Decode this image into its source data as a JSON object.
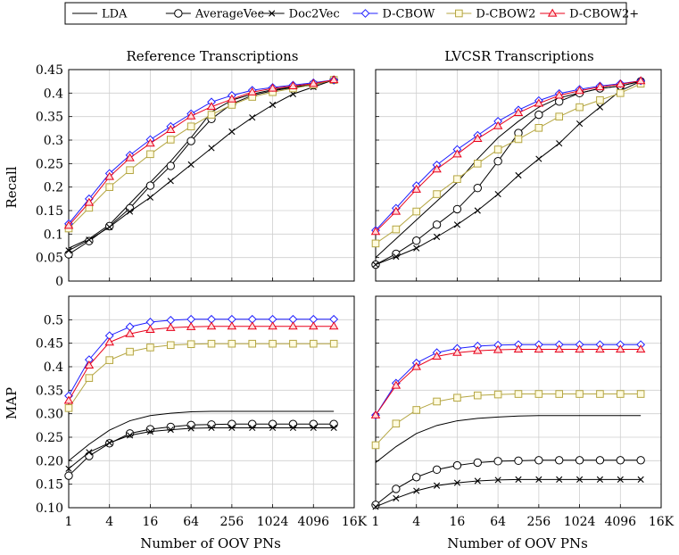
{
  "legend": [
    {
      "key": "lda",
      "label": "LDA",
      "color": "#000000",
      "marker": "none"
    },
    {
      "key": "averagevec",
      "label": "AverageVec",
      "color": "#000000",
      "marker": "circle"
    },
    {
      "key": "doc2vec",
      "label": "Doc2Vec",
      "color": "#000000",
      "marker": "x"
    },
    {
      "key": "dcbow",
      "label": "D-CBOW",
      "color": "#1f1fff",
      "marker": "diamond"
    },
    {
      "key": "dcbow2",
      "label": "D-CBOW2",
      "color": "#b5a642",
      "marker": "square"
    },
    {
      "key": "dcbow2plus",
      "label": "D-CBOW2+",
      "color": "#e8001a",
      "marker": "triangle"
    }
  ],
  "x_tick_labels": [
    "1",
    "4",
    "16",
    "64",
    "256",
    "1024",
    "4096",
    "16K"
  ],
  "x_tick_values": [
    1,
    4,
    16,
    64,
    256,
    1024,
    4096,
    16384
  ],
  "x_axis_title": "Number of OOV PNs",
  "column_titles": [
    "Reference Transcriptions",
    "LVCSR Transcriptions"
  ],
  "row_titles": [
    "Recall",
    "MAP"
  ],
  "recall_ticks": [
    "0",
    "0.05",
    "0.1",
    "0.15",
    "0.2",
    "0.25",
    "0.3",
    "0.35",
    "0.4",
    "0.45"
  ],
  "map_ticks": [
    "0.10",
    "0.15",
    "0.20",
    "0.25",
    "0.30",
    "0.35",
    "0.4",
    "0.45",
    "0.5"
  ],
  "chart_data": [
    {
      "type": "line",
      "title": "Reference Transcriptions",
      "xlabel": "",
      "ylabel": "Recall",
      "x_scale": "log2",
      "xlim": [
        1,
        16384
      ],
      "ylim": [
        0,
        0.45
      ],
      "grid": true,
      "x": [
        1,
        2,
        4,
        8,
        16,
        32,
        64,
        128,
        256,
        512,
        1024,
        2048,
        4096,
        8192
      ],
      "series": [
        {
          "name": "LDA",
          "values": [
            0.07,
            0.09,
            0.12,
            0.165,
            0.21,
            0.255,
            0.305,
            0.36,
            0.385,
            0.398,
            0.407,
            0.413,
            0.418,
            0.428
          ]
        },
        {
          "name": "AverageVec",
          "values": [
            0.057,
            0.085,
            0.117,
            0.155,
            0.203,
            0.245,
            0.298,
            0.345,
            0.377,
            0.395,
            0.405,
            0.412,
            0.417,
            0.428
          ]
        },
        {
          "name": "Doc2Vec",
          "values": [
            0.065,
            0.088,
            0.115,
            0.148,
            0.178,
            0.213,
            0.248,
            0.283,
            0.318,
            0.348,
            0.375,
            0.398,
            0.413,
            0.428
          ]
        },
        {
          "name": "D-CBOW",
          "values": [
            0.122,
            0.175,
            0.229,
            0.268,
            0.301,
            0.329,
            0.356,
            0.381,
            0.395,
            0.406,
            0.412,
            0.417,
            0.422,
            0.428
          ]
        },
        {
          "name": "D-CBOW2",
          "values": [
            0.112,
            0.156,
            0.2,
            0.236,
            0.27,
            0.301,
            0.329,
            0.354,
            0.375,
            0.392,
            0.402,
            0.41,
            0.418,
            0.428
          ]
        },
        {
          "name": "D-CBOW2+",
          "values": [
            0.118,
            0.167,
            0.222,
            0.262,
            0.293,
            0.322,
            0.351,
            0.371,
            0.387,
            0.402,
            0.41,
            0.415,
            0.42,
            0.428
          ]
        }
      ]
    },
    {
      "type": "line",
      "title": "LVCSR Transcriptions",
      "xlabel": "",
      "ylabel": "",
      "x_scale": "log2",
      "xlim": [
        1,
        16384
      ],
      "ylim": [
        0,
        0.45
      ],
      "grid": true,
      "x": [
        1,
        2,
        4,
        8,
        16,
        32,
        64,
        128,
        256,
        512,
        1024,
        2048,
        4096,
        8192
      ],
      "series": [
        {
          "name": "LDA",
          "values": [
            0.05,
            0.09,
            0.13,
            0.17,
            0.21,
            0.26,
            0.305,
            0.34,
            0.37,
            0.39,
            0.4,
            0.41,
            0.415,
            0.425
          ]
        },
        {
          "name": "AverageVec",
          "values": [
            0.035,
            0.058,
            0.086,
            0.12,
            0.153,
            0.198,
            0.255,
            0.315,
            0.354,
            0.382,
            0.4,
            0.41,
            0.415,
            0.425
          ]
        },
        {
          "name": "Doc2Vec",
          "values": [
            0.035,
            0.052,
            0.07,
            0.094,
            0.12,
            0.15,
            0.185,
            0.225,
            0.26,
            0.293,
            0.335,
            0.37,
            0.405,
            0.425
          ]
        },
        {
          "name": "D-CBOW",
          "values": [
            0.108,
            0.155,
            0.203,
            0.247,
            0.28,
            0.31,
            0.34,
            0.364,
            0.384,
            0.399,
            0.408,
            0.415,
            0.42,
            0.426
          ]
        },
        {
          "name": "D-CBOW2",
          "values": [
            0.08,
            0.11,
            0.148,
            0.185,
            0.217,
            0.25,
            0.28,
            0.302,
            0.326,
            0.35,
            0.37,
            0.385,
            0.4,
            0.42
          ]
        },
        {
          "name": "D-CBOW2+",
          "values": [
            0.105,
            0.148,
            0.195,
            0.238,
            0.27,
            0.303,
            0.33,
            0.358,
            0.378,
            0.395,
            0.405,
            0.413,
            0.419,
            0.426
          ]
        }
      ]
    },
    {
      "type": "line",
      "title": "",
      "xlabel": "Number of OOV PNs",
      "ylabel": "MAP",
      "x_scale": "log2",
      "xlim": [
        1,
        16384
      ],
      "ylim": [
        0.1,
        0.55
      ],
      "grid": true,
      "x": [
        1,
        2,
        4,
        8,
        16,
        32,
        64,
        128,
        256,
        512,
        1024,
        2048,
        4096,
        8192
      ],
      "series": [
        {
          "name": "LDA",
          "values": [
            0.2,
            0.235,
            0.265,
            0.285,
            0.296,
            0.301,
            0.304,
            0.305,
            0.305,
            0.305,
            0.305,
            0.305,
            0.305,
            0.305
          ]
        },
        {
          "name": "AverageVec",
          "values": [
            0.168,
            0.21,
            0.237,
            0.258,
            0.267,
            0.272,
            0.276,
            0.277,
            0.278,
            0.278,
            0.278,
            0.278,
            0.278,
            0.278
          ]
        },
        {
          "name": "Doc2Vec",
          "values": [
            0.183,
            0.218,
            0.238,
            0.254,
            0.262,
            0.266,
            0.269,
            0.27,
            0.27,
            0.27,
            0.27,
            0.27,
            0.27,
            0.27
          ]
        },
        {
          "name": "D-CBOW",
          "values": [
            0.338,
            0.415,
            0.466,
            0.485,
            0.495,
            0.499,
            0.501,
            0.501,
            0.501,
            0.501,
            0.501,
            0.501,
            0.501,
            0.501
          ]
        },
        {
          "name": "D-CBOW2",
          "values": [
            0.312,
            0.376,
            0.414,
            0.432,
            0.441,
            0.446,
            0.448,
            0.449,
            0.449,
            0.449,
            0.449,
            0.449,
            0.449,
            0.449
          ]
        },
        {
          "name": "D-CBOW2+",
          "values": [
            0.328,
            0.403,
            0.452,
            0.47,
            0.479,
            0.483,
            0.485,
            0.486,
            0.486,
            0.486,
            0.486,
            0.486,
            0.486,
            0.486
          ]
        }
      ]
    },
    {
      "type": "line",
      "title": "",
      "xlabel": "Number of OOV PNs",
      "ylabel": "",
      "x_scale": "log2",
      "xlim": [
        1,
        16384
      ],
      "ylim": [
        0.1,
        0.55
      ],
      "grid": true,
      "x": [
        1,
        2,
        4,
        8,
        16,
        32,
        64,
        128,
        256,
        512,
        1024,
        2048,
        4096,
        8192
      ],
      "series": [
        {
          "name": "LDA",
          "values": [
            0.196,
            0.23,
            0.258,
            0.275,
            0.285,
            0.29,
            0.293,
            0.295,
            0.296,
            0.296,
            0.296,
            0.296,
            0.296,
            0.296
          ]
        },
        {
          "name": "AverageVec",
          "values": [
            0.106,
            0.14,
            0.165,
            0.181,
            0.19,
            0.196,
            0.199,
            0.2,
            0.201,
            0.201,
            0.201,
            0.201,
            0.201,
            0.201
          ]
        },
        {
          "name": "Doc2Vec",
          "values": [
            0.102,
            0.12,
            0.136,
            0.147,
            0.153,
            0.157,
            0.159,
            0.16,
            0.16,
            0.16,
            0.16,
            0.16,
            0.16,
            0.16
          ]
        },
        {
          "name": "D-CBOW",
          "values": [
            0.297,
            0.365,
            0.408,
            0.43,
            0.439,
            0.444,
            0.446,
            0.447,
            0.447,
            0.447,
            0.447,
            0.447,
            0.447,
            0.447
          ]
        },
        {
          "name": "D-CBOW2",
          "values": [
            0.233,
            0.279,
            0.308,
            0.326,
            0.334,
            0.339,
            0.341,
            0.342,
            0.342,
            0.342,
            0.342,
            0.342,
            0.342,
            0.342
          ]
        },
        {
          "name": "D-CBOW2+",
          "values": [
            0.297,
            0.36,
            0.4,
            0.422,
            0.43,
            0.434,
            0.436,
            0.437,
            0.437,
            0.437,
            0.437,
            0.437,
            0.437,
            0.437
          ]
        }
      ]
    }
  ]
}
